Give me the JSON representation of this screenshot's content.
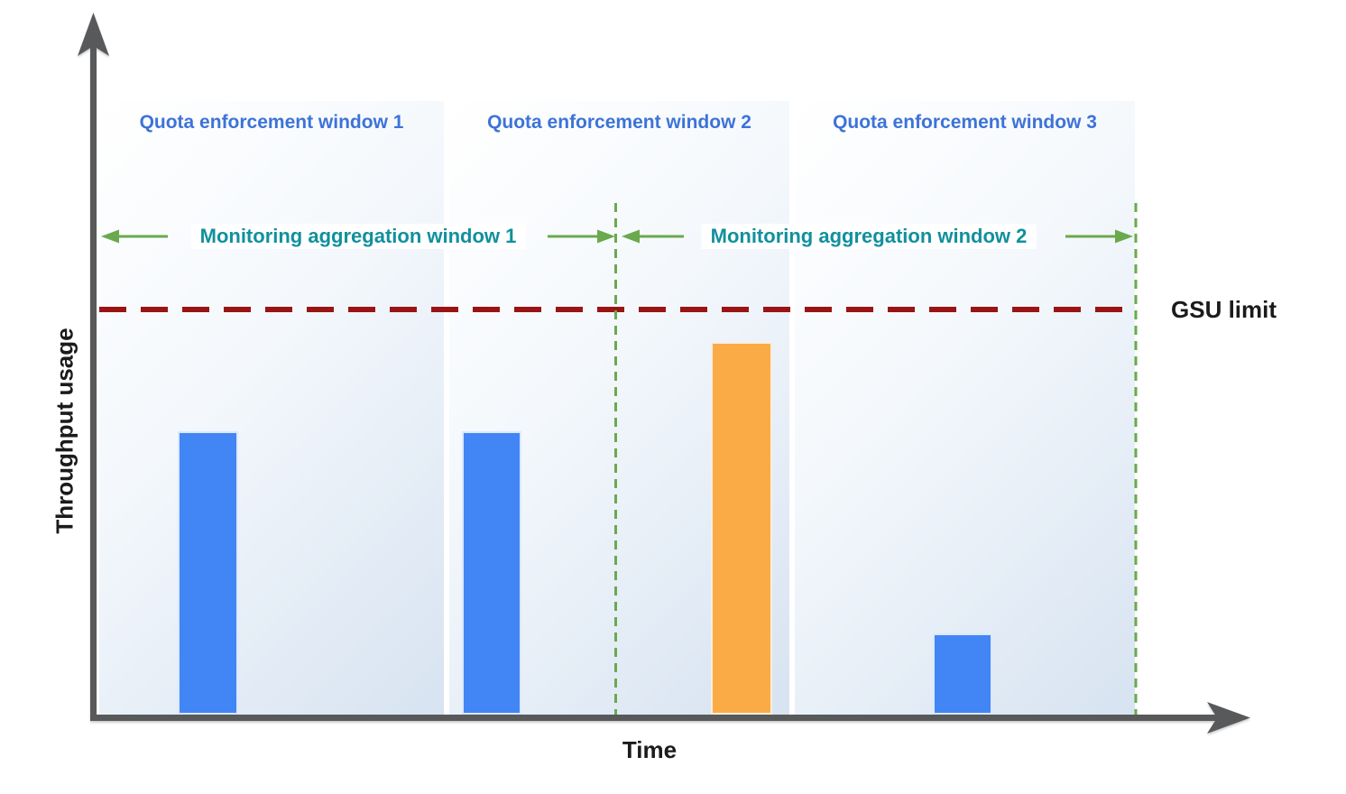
{
  "colors": {
    "bar-blue": "#4285f4",
    "bar-orange": "#fbab45",
    "axis-gray": "#58595b",
    "quota-label-blue": "#3d73d8",
    "monitoring-teal": "#11909d",
    "annotation-green": "#6aa94e",
    "gsu-limit-red": "#9a1414",
    "label-black": "#1b1b1b",
    "shade-light": "#ffffff",
    "shade-mid": "#f4f8fc",
    "shade-dark": "#d7e3f1"
  },
  "axes": {
    "y_label": "Throughput usage",
    "x_label": "Time"
  },
  "gsu_limit_label": "GSU limit",
  "quota_windows": [
    {
      "label": "Quota enforcement window 1"
    },
    {
      "label": "Quota enforcement window 2"
    },
    {
      "label": "Quota enforcement window 3"
    }
  ],
  "monitoring_windows": [
    {
      "label": "Monitoring aggregation window 1"
    },
    {
      "label": "Monitoring aggregation window 2"
    }
  ],
  "chart_data": {
    "type": "bar",
    "title": "",
    "xlabel": "Time",
    "ylabel": "Throughput usage",
    "y_units": "relative throughput, GSU limit = 1.0 (no numeric ticks shown)",
    "gsu_limit": 1.0,
    "gridlines": false,
    "bars": [
      {
        "enforcement_window": "Quota enforcement window 1",
        "monitoring_window": "Monitoring aggregation window 1",
        "value": 0.7,
        "color": "blue"
      },
      {
        "enforcement_window": "Quota enforcement window 2",
        "monitoring_window": "Monitoring aggregation window 1",
        "value": 0.7,
        "color": "blue"
      },
      {
        "enforcement_window": "Quota enforcement window 2",
        "monitoring_window": "Monitoring aggregation window 2",
        "value": 0.92,
        "color": "orange"
      },
      {
        "enforcement_window": "Quota enforcement window 3",
        "monitoring_window": "Monitoring aggregation window 2",
        "value": 0.2,
        "color": "blue"
      }
    ],
    "annotations": [
      "Dark red horizontal dashed line marks the GSU limit",
      "Two green vertical dashed lines mark monitoring aggregation window boundaries",
      "Green horizontal arrows span each monitoring aggregation window"
    ]
  }
}
